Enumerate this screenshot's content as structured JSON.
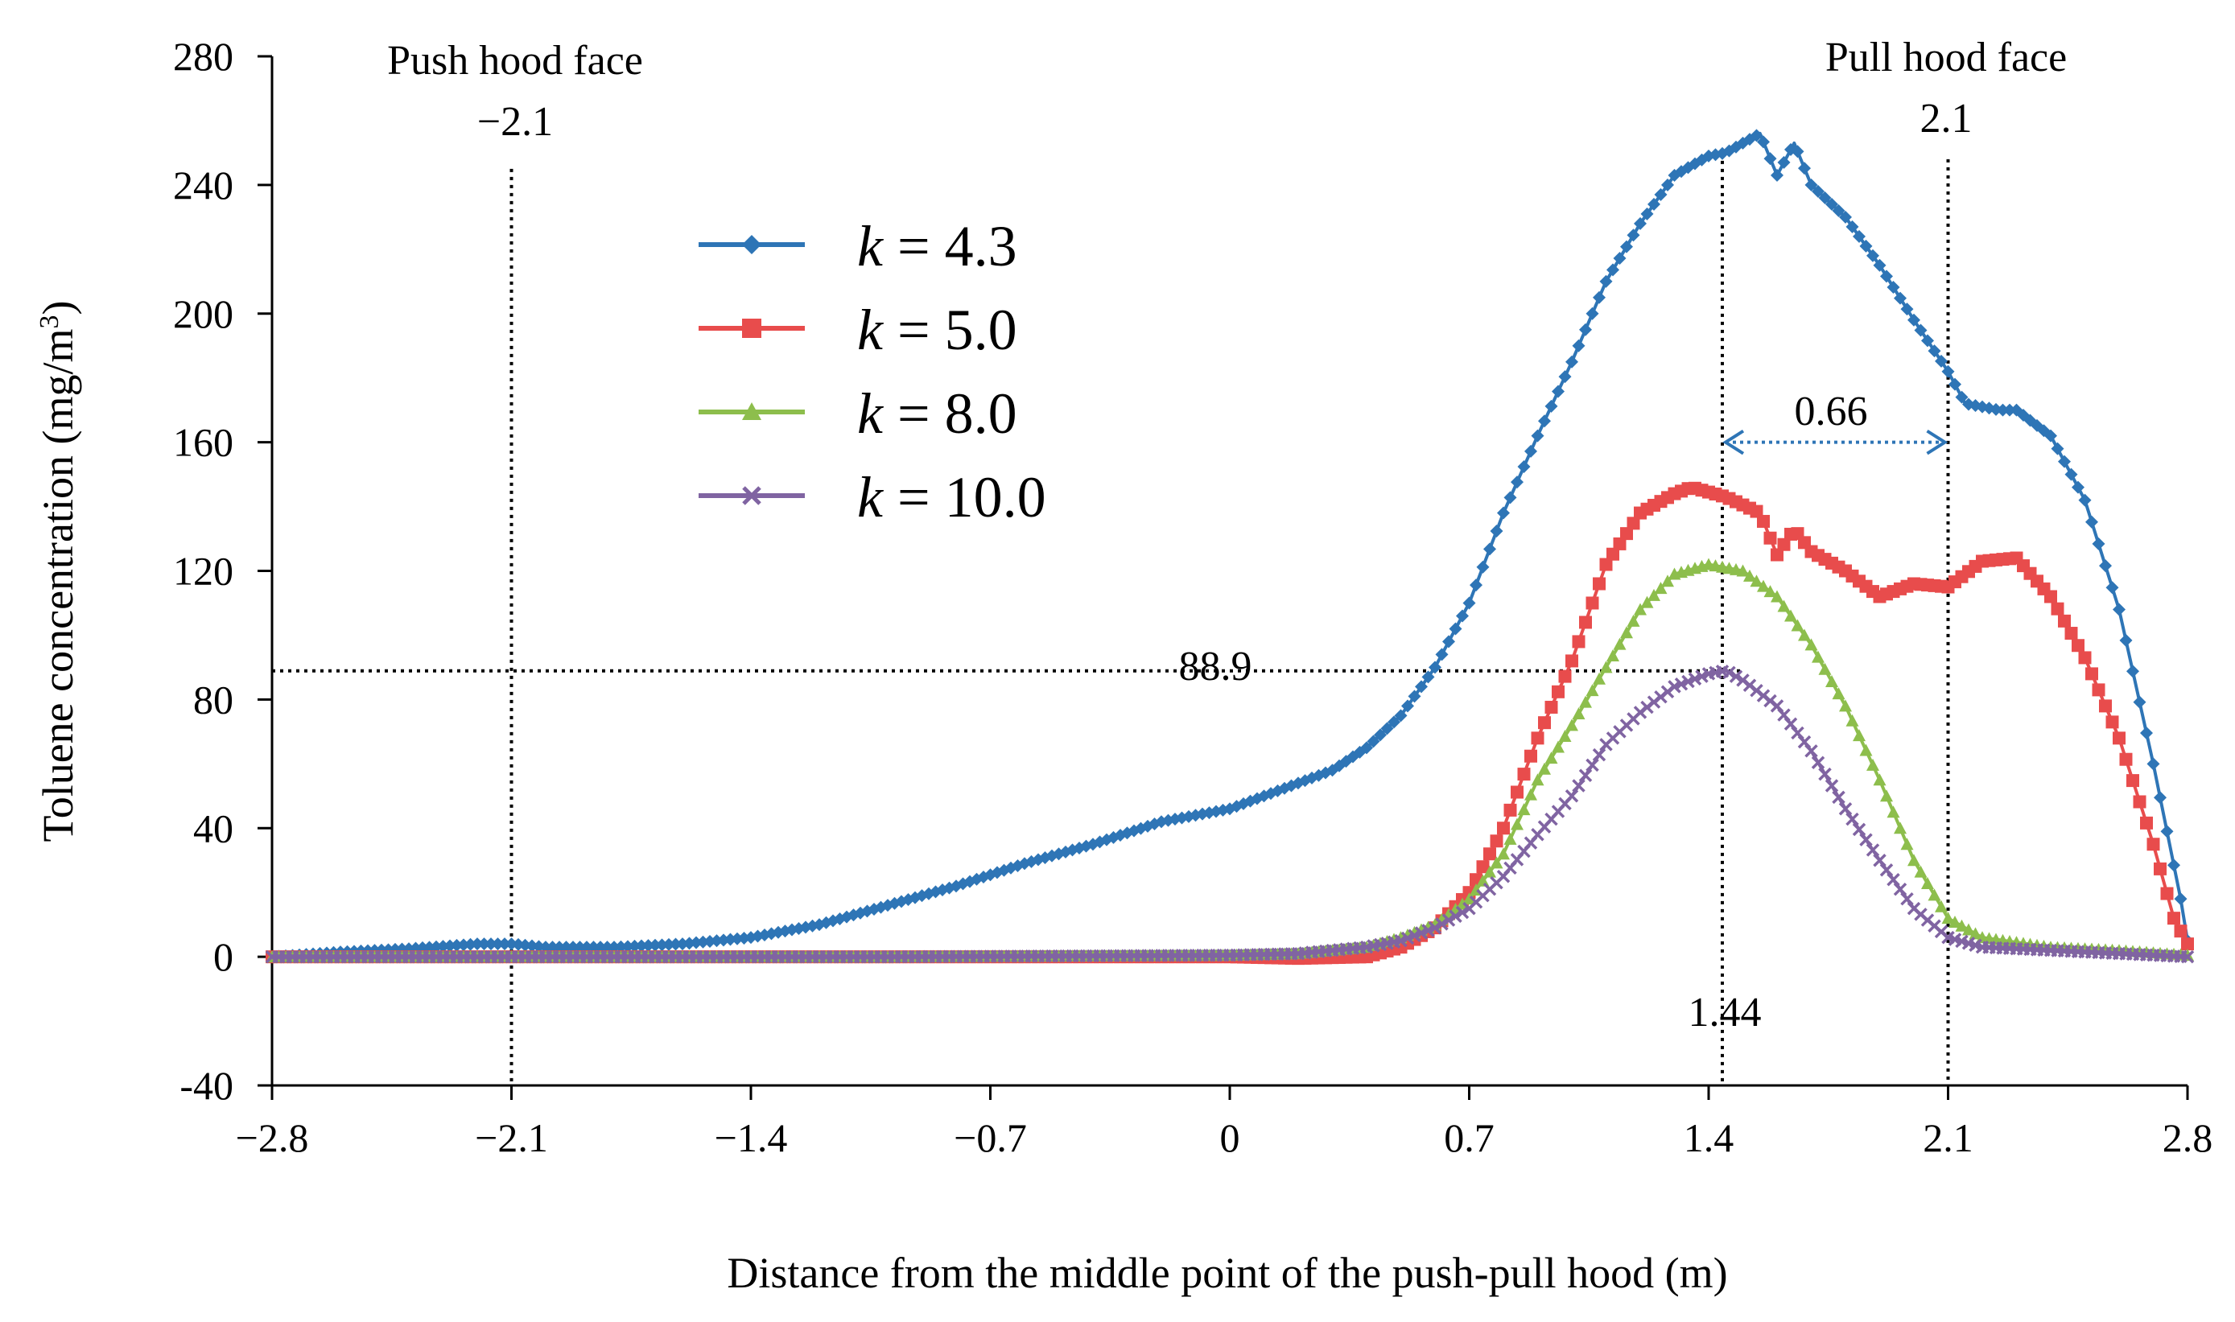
{
  "chart_data": {
    "type": "line",
    "title": "",
    "xlabel": "Distance  from the middle point of the push-pull hood (m)",
    "ylabel_main": "Toluene concentration (mg/m",
    "ylabel_sup": "3",
    "ylabel_close": ")",
    "xlim": [
      -2.8,
      2.8
    ],
    "ylim": [
      -40,
      280
    ],
    "x_ticks": [
      -2.8,
      -2.1,
      -1.4,
      -0.7,
      0,
      0.7,
      1.4,
      2.1,
      2.8
    ],
    "x_tick_labels": [
      "−2.8",
      "−2.1",
      "−1.4",
      "−0.7",
      "0",
      "0.7",
      "1.4",
      "2.1",
      "2.8"
    ],
    "y_ticks": [
      280,
      240,
      200,
      160,
      120,
      80,
      40,
      0,
      -40
    ],
    "y_tick_labels": [
      "280",
      "240",
      "200",
      "160",
      "120",
      "80",
      "40",
      "0",
      "-40"
    ],
    "legend_position": "upper-left",
    "series": [
      {
        "name": "4.3",
        "color": "#2e75b6",
        "marker": "diamond",
        "points": [
          [
            -2.8,
            0
          ],
          [
            -2.6,
            1.5
          ],
          [
            -2.4,
            2.5
          ],
          [
            -2.2,
            4
          ],
          [
            -2.1,
            4
          ],
          [
            -2.0,
            3
          ],
          [
            -1.8,
            3
          ],
          [
            -1.6,
            4
          ],
          [
            -1.4,
            6
          ],
          [
            -1.2,
            10
          ],
          [
            -1.0,
            16
          ],
          [
            -0.8,
            22
          ],
          [
            -0.6,
            29
          ],
          [
            -0.4,
            35
          ],
          [
            -0.2,
            42
          ],
          [
            0,
            46
          ],
          [
            0.2,
            54
          ],
          [
            0.3,
            58
          ],
          [
            0.4,
            65
          ],
          [
            0.5,
            75
          ],
          [
            0.6,
            90
          ],
          [
            0.7,
            110
          ],
          [
            0.8,
            138
          ],
          [
            0.9,
            162
          ],
          [
            1.0,
            185
          ],
          [
            1.1,
            210
          ],
          [
            1.2,
            228
          ],
          [
            1.3,
            243
          ],
          [
            1.4,
            249
          ],
          [
            1.45,
            250
          ],
          [
            1.5,
            253
          ],
          [
            1.55,
            256
          ],
          [
            1.6,
            243
          ],
          [
            1.65,
            253
          ],
          [
            1.7,
            240
          ],
          [
            1.8,
            230
          ],
          [
            1.9,
            215
          ],
          [
            2.0,
            198
          ],
          [
            2.1,
            182
          ],
          [
            2.15,
            172
          ],
          [
            2.25,
            170
          ],
          [
            2.3,
            170
          ],
          [
            2.4,
            162
          ],
          [
            2.5,
            142
          ],
          [
            2.6,
            108
          ],
          [
            2.7,
            60
          ],
          [
            2.78,
            18
          ],
          [
            2.8,
            5
          ]
        ]
      },
      {
        "name": "5.0",
        "color": "#e84c4c",
        "marker": "square",
        "points": [
          [
            -2.8,
            0
          ],
          [
            -2.0,
            0
          ],
          [
            -1.0,
            0
          ],
          [
            0,
            0
          ],
          [
            0.2,
            -0.5
          ],
          [
            0.4,
            0
          ],
          [
            0.5,
            3
          ],
          [
            0.6,
            9
          ],
          [
            0.7,
            20
          ],
          [
            0.8,
            40
          ],
          [
            0.9,
            68
          ],
          [
            1.0,
            92
          ],
          [
            1.1,
            122
          ],
          [
            1.2,
            138
          ],
          [
            1.3,
            144
          ],
          [
            1.35,
            146
          ],
          [
            1.45,
            143
          ],
          [
            1.55,
            138
          ],
          [
            1.6,
            125
          ],
          [
            1.65,
            133
          ],
          [
            1.7,
            126
          ],
          [
            1.8,
            120
          ],
          [
            1.9,
            112
          ],
          [
            2.0,
            116
          ],
          [
            2.1,
            115
          ],
          [
            2.2,
            123
          ],
          [
            2.3,
            124
          ],
          [
            2.4,
            112
          ],
          [
            2.5,
            93
          ],
          [
            2.6,
            68
          ],
          [
            2.7,
            35
          ],
          [
            2.76,
            12
          ],
          [
            2.8,
            4
          ]
        ]
      },
      {
        "name": "8.0",
        "color": "#8dbe4c",
        "marker": "triangle",
        "points": [
          [
            -2.8,
            0
          ],
          [
            -2.0,
            0
          ],
          [
            -1.0,
            0
          ],
          [
            0,
            0.5
          ],
          [
            0.2,
            1
          ],
          [
            0.4,
            3
          ],
          [
            0.5,
            6
          ],
          [
            0.6,
            10
          ],
          [
            0.7,
            18
          ],
          [
            0.8,
            32
          ],
          [
            0.9,
            55
          ],
          [
            1.0,
            72
          ],
          [
            1.1,
            90
          ],
          [
            1.2,
            108
          ],
          [
            1.3,
            119
          ],
          [
            1.4,
            122
          ],
          [
            1.5,
            120
          ],
          [
            1.6,
            112
          ],
          [
            1.7,
            97
          ],
          [
            1.8,
            78
          ],
          [
            1.9,
            55
          ],
          [
            2.0,
            30
          ],
          [
            2.1,
            12
          ],
          [
            2.2,
            6
          ],
          [
            2.4,
            3
          ],
          [
            2.6,
            2
          ],
          [
            2.8,
            0.5
          ]
        ]
      },
      {
        "name": "10.0",
        "color": "#8064a2",
        "marker": "x",
        "points": [
          [
            -2.8,
            0
          ],
          [
            -2.0,
            0
          ],
          [
            -1.0,
            0
          ],
          [
            0,
            0.5
          ],
          [
            0.2,
            1
          ],
          [
            0.4,
            3
          ],
          [
            0.5,
            5
          ],
          [
            0.6,
            9
          ],
          [
            0.7,
            15
          ],
          [
            0.8,
            25
          ],
          [
            0.9,
            38
          ],
          [
            1.0,
            50
          ],
          [
            1.1,
            66
          ],
          [
            1.2,
            76
          ],
          [
            1.3,
            84
          ],
          [
            1.4,
            88
          ],
          [
            1.45,
            89
          ],
          [
            1.5,
            86
          ],
          [
            1.6,
            78
          ],
          [
            1.7,
            64
          ],
          [
            1.8,
            46
          ],
          [
            1.9,
            30
          ],
          [
            2.0,
            15
          ],
          [
            2.1,
            6
          ],
          [
            2.2,
            3
          ],
          [
            2.4,
            2
          ],
          [
            2.6,
            1
          ],
          [
            2.8,
            0
          ]
        ]
      }
    ],
    "legend_k_symbol": "k",
    "legend_eq": " = ",
    "annotations": {
      "push_face_label": "Push hood face",
      "push_face_value": "−2.1",
      "push_face_x": -2.1,
      "pull_face_label": "Pull hood face",
      "pull_face_value": "2.1",
      "pull_face_x": 2.1,
      "peak_x": 1.44,
      "peak_label": "1.44",
      "level_value": 88.9,
      "level_label": "88.9",
      "gap_label": "0.66",
      "gap_from": 1.44,
      "gap_to": 2.1,
      "gap_y": 160
    }
  }
}
